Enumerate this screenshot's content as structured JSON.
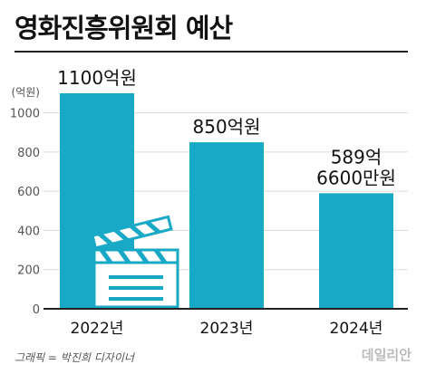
{
  "title": "영화진흥위원회 예산",
  "credit": "그래픽 = 박진희 디자이너",
  "brand": "데일리안",
  "colors": {
    "bar": "#18a9c6",
    "grid": "#dcdcdc",
    "text": "#111111",
    "axis": "#555555"
  },
  "icon": "clapperboard-icon",
  "chart_data": {
    "type": "bar",
    "title": "영화진흥위원회 예산",
    "ylabel": "(억원)",
    "xlabel": "",
    "categories": [
      "2022년",
      "2023년",
      "2024년"
    ],
    "values": [
      1100,
      850,
      589.66
    ],
    "data_labels": [
      [
        "1100억원"
      ],
      [
        "850억원"
      ],
      [
        "589억",
        "6600만원"
      ]
    ],
    "yticks": [
      0,
      200,
      400,
      600,
      800,
      1000
    ],
    "ylim": [
      0,
      1100
    ],
    "grid": true,
    "legend": "none"
  }
}
